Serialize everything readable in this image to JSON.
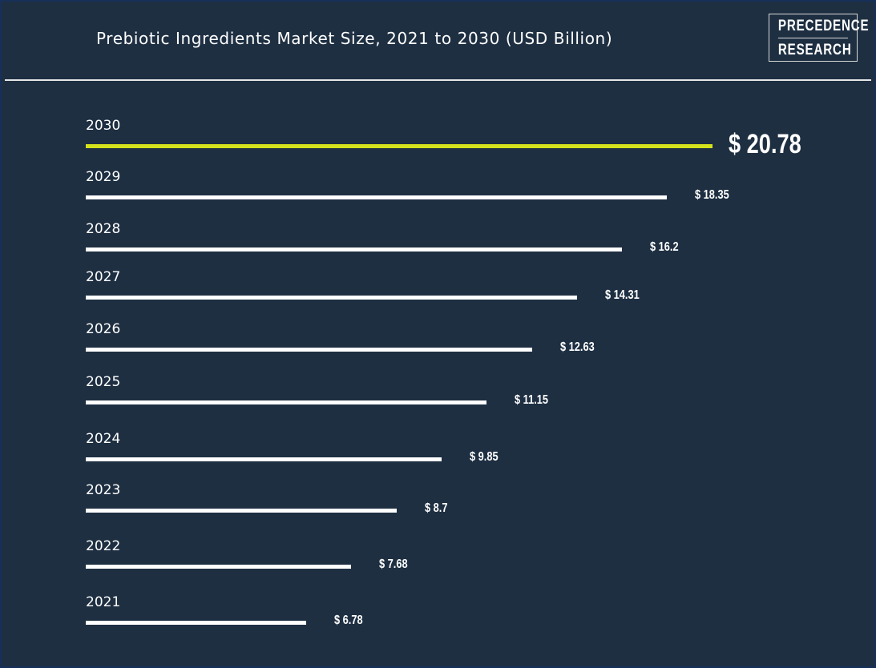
{
  "chart_data": {
    "type": "bar",
    "orientation": "horizontal",
    "title": "Prebiotic Ingredients Market Size, 2021 to 2030 (USD Billion)",
    "categories": [
      "2030",
      "2029",
      "2028",
      "2027",
      "2026",
      "2025",
      "2024",
      "2023",
      "2022",
      "2021"
    ],
    "values": [
      20.78,
      18.35,
      16.2,
      14.31,
      12.63,
      11.15,
      9.85,
      8.7,
      7.68,
      6.78
    ],
    "value_labels": [
      "$ 20.78",
      "$ 18.35",
      "$ 16.2",
      "$ 14.31",
      "$ 12.63",
      "$ 11.15",
      "$ 9.85",
      "$ 8.7",
      "$ 7.68",
      "$ 6.78"
    ],
    "highlight_index": 0,
    "xlabel": "",
    "ylabel": "",
    "grid": false
  },
  "logo": {
    "line1": "PRECEDENCE",
    "line2": "RESEARCH"
  },
  "colors": {
    "background": "#1e2f42",
    "bar": "#ffffff",
    "highlight": "#d4e21b"
  }
}
